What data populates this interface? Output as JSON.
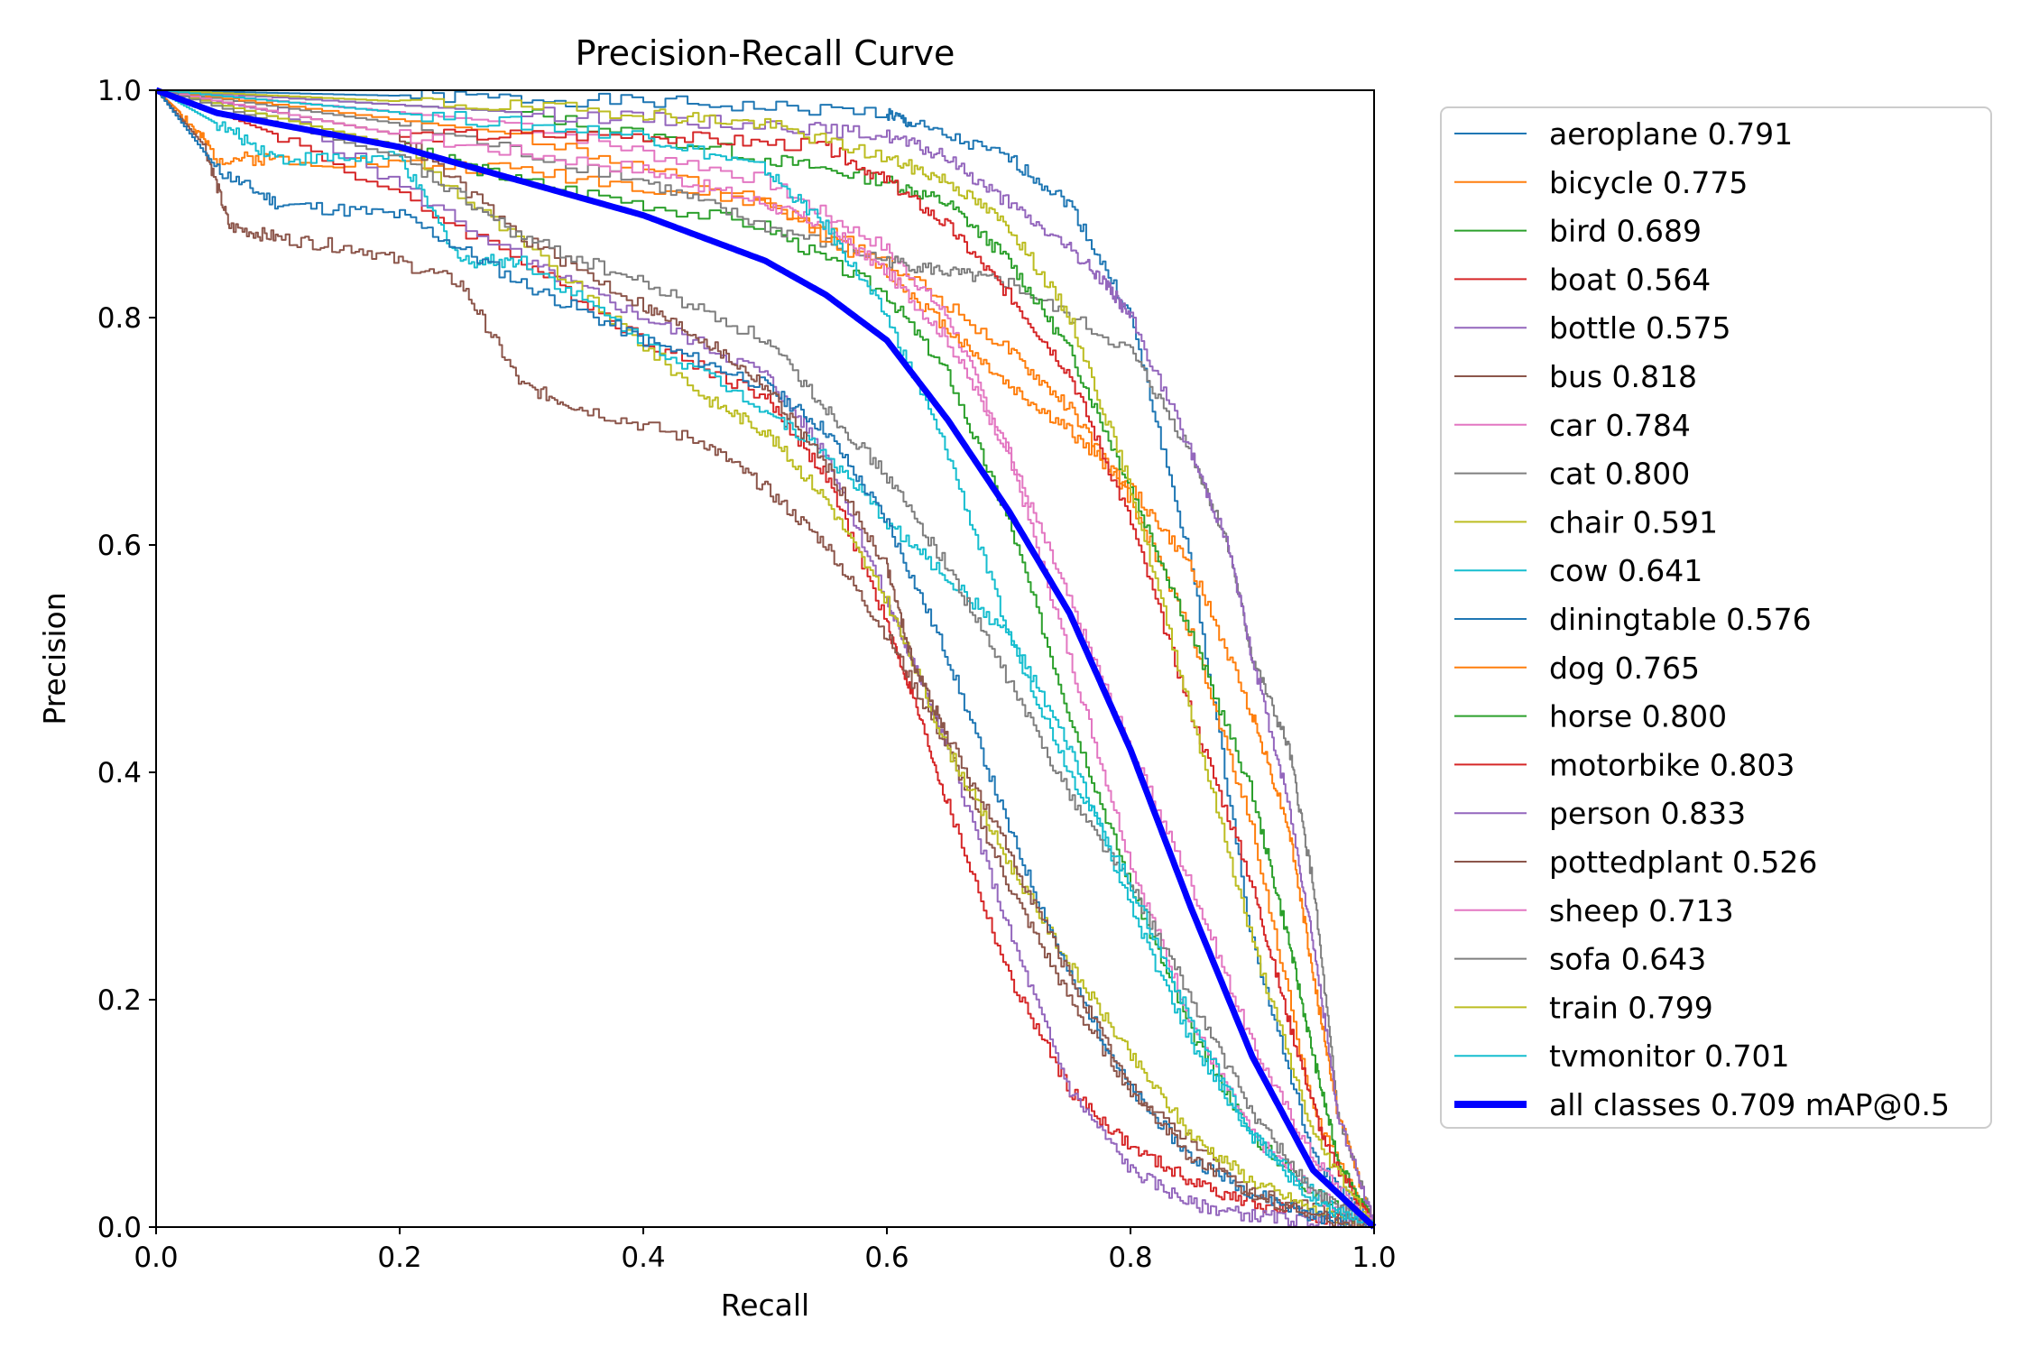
{
  "chart_data": {
    "type": "line",
    "title": "Precision-Recall Curve",
    "xlabel": "Recall",
    "ylabel": "Precision",
    "xlim": [
      0.0,
      1.0
    ],
    "ylim": [
      0.0,
      1.0
    ],
    "xticks": [
      "0.0",
      "0.2",
      "0.4",
      "0.6",
      "0.8",
      "1.0"
    ],
    "yticks": [
      "0.0",
      "0.2",
      "0.4",
      "0.6",
      "0.8",
      "1.0"
    ],
    "grid": false,
    "legend_position": "outside-right",
    "series": [
      {
        "name": "aeroplane 0.791",
        "color": "#1f77b4",
        "x": [
          0,
          0.2,
          0.4,
          0.6,
          0.62,
          0.7,
          0.75,
          0.8,
          0.85,
          0.9,
          0.95,
          1
        ],
        "y": [
          1,
          0.995,
          0.99,
          0.98,
          0.97,
          0.94,
          0.9,
          0.8,
          0.58,
          0.25,
          0.06,
          0
        ]
      },
      {
        "name": "bicycle 0.775",
        "color": "#ff7f0e",
        "x": [
          0,
          0.02,
          0.05,
          0.1,
          0.3,
          0.5,
          0.6,
          0.7,
          0.75,
          0.8,
          0.85,
          0.9,
          0.95,
          1
        ],
        "y": [
          1,
          0.98,
          0.94,
          0.94,
          0.93,
          0.9,
          0.85,
          0.77,
          0.72,
          0.64,
          0.52,
          0.35,
          0.1,
          0
        ]
      },
      {
        "name": "bird 0.689",
        "color": "#2ca02c",
        "x": [
          0,
          0.2,
          0.3,
          0.5,
          0.6,
          0.65,
          0.7,
          0.75,
          0.8,
          0.85,
          0.9,
          0.95,
          1
        ],
        "y": [
          1,
          0.95,
          0.92,
          0.88,
          0.82,
          0.75,
          0.62,
          0.45,
          0.3,
          0.17,
          0.08,
          0.03,
          0
        ]
      },
      {
        "name": "boat 0.564",
        "color": "#d62728",
        "x": [
          0,
          0.1,
          0.3,
          0.4,
          0.5,
          0.55,
          0.6,
          0.62,
          0.65,
          0.7,
          0.75,
          0.8,
          0.85,
          0.9,
          0.95,
          1
        ],
        "y": [
          1,
          0.96,
          0.85,
          0.78,
          0.73,
          0.66,
          0.53,
          0.47,
          0.37,
          0.22,
          0.12,
          0.07,
          0.04,
          0.02,
          0.01,
          0
        ]
      },
      {
        "name": "bottle 0.575",
        "color": "#9467bd",
        "x": [
          0,
          0.1,
          0.3,
          0.4,
          0.5,
          0.55,
          0.6,
          0.62,
          0.65,
          0.7,
          0.75,
          0.8,
          0.85,
          0.9,
          0.95,
          1
        ],
        "y": [
          1,
          0.98,
          0.85,
          0.8,
          0.75,
          0.68,
          0.55,
          0.5,
          0.42,
          0.26,
          0.12,
          0.05,
          0.02,
          0.01,
          0.005,
          0
        ]
      },
      {
        "name": "bus 0.818",
        "color": "#8c564b",
        "x": [
          0,
          0.04,
          0.06,
          0.1,
          0.17,
          0.25,
          0.3,
          0.35,
          0.45,
          0.5,
          0.55,
          0.6,
          0.65,
          0.7,
          0.75,
          0.8,
          0.9,
          1
        ],
        "y": [
          1,
          0.95,
          0.88,
          0.87,
          0.86,
          0.83,
          0.74,
          0.72,
          0.69,
          0.65,
          0.6,
          0.52,
          0.42,
          0.3,
          0.2,
          0.12,
          0.03,
          0
        ]
      },
      {
        "name": "car 0.784",
        "color": "#e377c2",
        "x": [
          0,
          0.3,
          0.5,
          0.6,
          0.65,
          0.7,
          0.75,
          0.8,
          0.85,
          0.9,
          0.95,
          1
        ],
        "y": [
          1,
          0.97,
          0.92,
          0.86,
          0.8,
          0.68,
          0.5,
          0.32,
          0.18,
          0.08,
          0.03,
          0
        ]
      },
      {
        "name": "cat 0.800",
        "color": "#7f7f7f",
        "x": [
          0,
          0.2,
          0.4,
          0.5,
          0.6,
          0.65,
          0.7,
          0.8,
          0.85,
          0.88,
          0.9,
          0.93,
          0.95,
          0.97,
          1
        ],
        "y": [
          1,
          0.97,
          0.92,
          0.88,
          0.85,
          0.84,
          0.83,
          0.77,
          0.68,
          0.6,
          0.5,
          0.42,
          0.3,
          0.1,
          0
        ]
      },
      {
        "name": "chair 0.591",
        "color": "#bcbd22",
        "x": [
          0,
          0.2,
          0.35,
          0.45,
          0.5,
          0.55,
          0.6,
          0.65,
          0.7,
          0.75,
          0.8,
          0.85,
          0.9,
          0.95,
          1
        ],
        "y": [
          1,
          0.95,
          0.82,
          0.73,
          0.7,
          0.64,
          0.55,
          0.42,
          0.32,
          0.23,
          0.15,
          0.08,
          0.04,
          0.015,
          0
        ]
      },
      {
        "name": "cow 0.641",
        "color": "#17becf",
        "x": [
          0,
          0.05,
          0.1,
          0.2,
          0.25,
          0.3,
          0.4,
          0.5,
          0.55,
          0.6,
          0.65,
          0.7,
          0.75,
          0.8,
          0.85,
          0.9,
          0.95,
          1
        ],
        "y": [
          1,
          0.97,
          0.94,
          0.94,
          0.85,
          0.85,
          0.78,
          0.72,
          0.68,
          0.62,
          0.57,
          0.52,
          0.42,
          0.28,
          0.16,
          0.08,
          0.03,
          0
        ]
      },
      {
        "name": "diningtable 0.576",
        "color": "#1f77b4",
        "x": [
          0,
          0.05,
          0.1,
          0.2,
          0.3,
          0.4,
          0.5,
          0.55,
          0.6,
          0.65,
          0.7,
          0.75,
          0.8,
          0.85,
          0.9,
          0.95,
          1
        ],
        "y": [
          1,
          0.93,
          0.9,
          0.89,
          0.83,
          0.78,
          0.74,
          0.7,
          0.62,
          0.5,
          0.35,
          0.22,
          0.12,
          0.06,
          0.03,
          0.01,
          0
        ]
      },
      {
        "name": "dog 0.765",
        "color": "#ff7f0e",
        "x": [
          0,
          0.3,
          0.5,
          0.6,
          0.65,
          0.7,
          0.75,
          0.8,
          0.85,
          0.9,
          0.93,
          0.95,
          0.97,
          1
        ],
        "y": [
          1,
          0.96,
          0.9,
          0.84,
          0.79,
          0.74,
          0.7,
          0.65,
          0.58,
          0.45,
          0.35,
          0.22,
          0.1,
          0
        ]
      },
      {
        "name": "horse 0.800",
        "color": "#2ca02c",
        "x": [
          0,
          0.3,
          0.5,
          0.6,
          0.65,
          0.7,
          0.75,
          0.8,
          0.85,
          0.9,
          0.93,
          0.95,
          0.97,
          1
        ],
        "y": [
          1,
          0.98,
          0.94,
          0.92,
          0.9,
          0.85,
          0.77,
          0.65,
          0.52,
          0.38,
          0.25,
          0.15,
          0.06,
          0
        ]
      },
      {
        "name": "motorbike 0.803",
        "color": "#d62728",
        "x": [
          0,
          0.2,
          0.4,
          0.55,
          0.6,
          0.65,
          0.7,
          0.75,
          0.8,
          0.85,
          0.9,
          0.93,
          0.96,
          1
        ],
        "y": [
          1,
          0.96,
          0.96,
          0.95,
          0.92,
          0.88,
          0.82,
          0.75,
          0.62,
          0.45,
          0.3,
          0.18,
          0.07,
          0
        ]
      },
      {
        "name": "person 0.833",
        "color": "#9467bd",
        "x": [
          0,
          0.3,
          0.5,
          0.6,
          0.65,
          0.7,
          0.75,
          0.78,
          0.8,
          0.85,
          0.88,
          0.9,
          0.93,
          0.95,
          0.97,
          1
        ],
        "y": [
          1,
          0.98,
          0.97,
          0.96,
          0.94,
          0.9,
          0.86,
          0.83,
          0.8,
          0.68,
          0.6,
          0.5,
          0.37,
          0.25,
          0.1,
          0
        ]
      },
      {
        "name": "pottedplant 0.526",
        "color": "#8c564b",
        "x": [
          0,
          0.2,
          0.3,
          0.4,
          0.45,
          0.5,
          0.55,
          0.6,
          0.62,
          0.65,
          0.7,
          0.75,
          0.8,
          0.85,
          0.9,
          0.95,
          1
        ],
        "y": [
          1,
          0.96,
          0.87,
          0.81,
          0.78,
          0.74,
          0.67,
          0.58,
          0.5,
          0.43,
          0.33,
          0.22,
          0.12,
          0.06,
          0.03,
          0.01,
          0
        ]
      },
      {
        "name": "sheep 0.713",
        "color": "#e377c2",
        "x": [
          0,
          0.2,
          0.4,
          0.5,
          0.55,
          0.6,
          0.65,
          0.7,
          0.75,
          0.8,
          0.85,
          0.9,
          0.95,
          1
        ],
        "y": [
          1,
          0.96,
          0.93,
          0.9,
          0.88,
          0.84,
          0.78,
          0.68,
          0.55,
          0.42,
          0.3,
          0.16,
          0.06,
          0
        ]
      },
      {
        "name": "sofa 0.643",
        "color": "#7f7f7f",
        "x": [
          0,
          0.2,
          0.3,
          0.4,
          0.5,
          0.55,
          0.6,
          0.65,
          0.7,
          0.75,
          0.8,
          0.85,
          0.9,
          0.95,
          1
        ],
        "y": [
          1,
          0.94,
          0.87,
          0.83,
          0.78,
          0.72,
          0.66,
          0.58,
          0.48,
          0.38,
          0.3,
          0.2,
          0.1,
          0.03,
          0
        ]
      },
      {
        "name": "train 0.799",
        "color": "#bcbd22",
        "x": [
          0,
          0.2,
          0.4,
          0.5,
          0.6,
          0.65,
          0.7,
          0.75,
          0.8,
          0.85,
          0.9,
          0.95,
          1
        ],
        "y": [
          1,
          0.99,
          0.98,
          0.97,
          0.94,
          0.92,
          0.88,
          0.8,
          0.65,
          0.45,
          0.25,
          0.08,
          0
        ]
      },
      {
        "name": "tvmonitor 0.701",
        "color": "#17becf",
        "x": [
          0,
          0.2,
          0.4,
          0.5,
          0.55,
          0.6,
          0.65,
          0.7,
          0.75,
          0.8,
          0.85,
          0.9,
          0.95,
          1
        ],
        "y": [
          1,
          0.98,
          0.96,
          0.93,
          0.88,
          0.8,
          0.68,
          0.52,
          0.4,
          0.3,
          0.18,
          0.08,
          0.02,
          0
        ]
      },
      {
        "name": "all classes 0.709 mAP@0.5",
        "color": "#0000ff",
        "x": [
          0,
          0.05,
          0.1,
          0.2,
          0.3,
          0.4,
          0.5,
          0.55,
          0.6,
          0.65,
          0.7,
          0.75,
          0.8,
          0.85,
          0.9,
          0.95,
          1
        ],
        "y": [
          1,
          0.98,
          0.97,
          0.95,
          0.92,
          0.89,
          0.85,
          0.82,
          0.78,
          0.71,
          0.63,
          0.54,
          0.42,
          0.28,
          0.15,
          0.05,
          0
        ]
      }
    ]
  }
}
